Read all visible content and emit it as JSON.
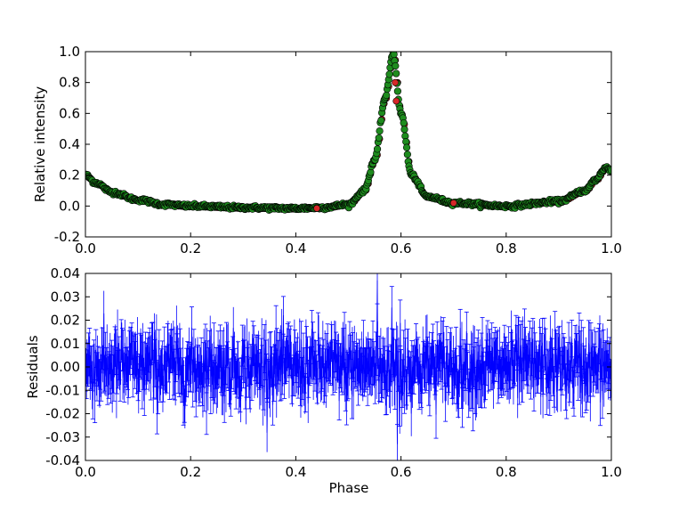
{
  "chart_data": [
    {
      "type": "scatter",
      "ylabel": "Relative intensity",
      "xlabel": "",
      "xlim": [
        0.0,
        1.0
      ],
      "ylim": [
        -0.2,
        1.0
      ],
      "xticks": [
        "0.0",
        "0.2",
        "0.4",
        "0.6",
        "0.8",
        "1.0"
      ],
      "yticks": [
        "-0.2",
        "0.0",
        "0.2",
        "0.4",
        "0.6",
        "0.8",
        "1.0"
      ],
      "colors": {
        "model": "#d62728",
        "data": "#1e8c1e",
        "edge": "#000000"
      },
      "profile": {
        "baseline": -0.015,
        "peak_phase": 0.585,
        "peak_value": 0.99,
        "secondary_peak_phase": 0.99,
        "secondary_peak_value": 0.25,
        "x": [
          0.0,
          0.02,
          0.05,
          0.1,
          0.15,
          0.2,
          0.3,
          0.4,
          0.45,
          0.5,
          0.53,
          0.55,
          0.57,
          0.585,
          0.6,
          0.62,
          0.65,
          0.7,
          0.8,
          0.9,
          0.95,
          0.97,
          0.99,
          1.0
        ],
        "y": [
          0.2,
          0.15,
          0.09,
          0.04,
          0.01,
          0.0,
          -0.01,
          -0.015,
          -0.01,
          0.01,
          0.1,
          0.3,
          0.7,
          0.99,
          0.6,
          0.2,
          0.06,
          0.02,
          0.0,
          0.03,
          0.1,
          0.17,
          0.25,
          0.23
        ]
      }
    },
    {
      "type": "errorbar",
      "ylabel": "Residuals",
      "xlabel": "Phase",
      "xlim": [
        0.0,
        1.0
      ],
      "ylim": [
        -0.04,
        0.04
      ],
      "xticks": [
        "0.0",
        "0.2",
        "0.4",
        "0.6",
        "0.8",
        "1.0"
      ],
      "yticks": [
        "-0.04",
        "-0.03",
        "-0.02",
        "-0.01",
        "0.00",
        "0.01",
        "0.02",
        "0.03",
        "0.04"
      ],
      "colors": {
        "series": "#0000ff"
      },
      "residual_scatter": 0.007,
      "error_bar_half_width": 0.009,
      "extremes": [
        {
          "x": 0.555,
          "y": 0.037
        },
        {
          "x": 0.593,
          "y": -0.033
        }
      ]
    }
  ]
}
